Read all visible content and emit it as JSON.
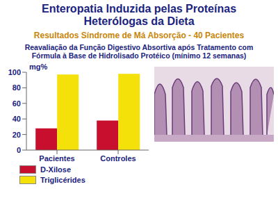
{
  "chart_data": {
    "type": "bar",
    "title": "Enteropatia Induzida pelas Proteínas Heterólogas da Dieta",
    "subtitle": "Resultados Síndrome de Má Absorção - 40 Pacientes",
    "annotation": "Reavaliação da Função Digestivo Absortiva após Tratamento com Fórmula à Base de Hidrolisado Protéico (mínimo 12 semanas)",
    "y_label": "mg%",
    "categories": [
      "Pacientes",
      "Controles"
    ],
    "series": [
      {
        "name": "D-Xilose",
        "color": "#c8102e",
        "values": [
          28,
          38
        ]
      },
      {
        "name": "Triglicérides",
        "color": "#f5e10a",
        "values": [
          97,
          98
        ]
      }
    ],
    "ylim": [
      0,
      100
    ],
    "yticks": [
      0,
      20,
      40,
      60,
      80,
      100
    ],
    "grid": false,
    "legend": "bottom left"
  }
}
